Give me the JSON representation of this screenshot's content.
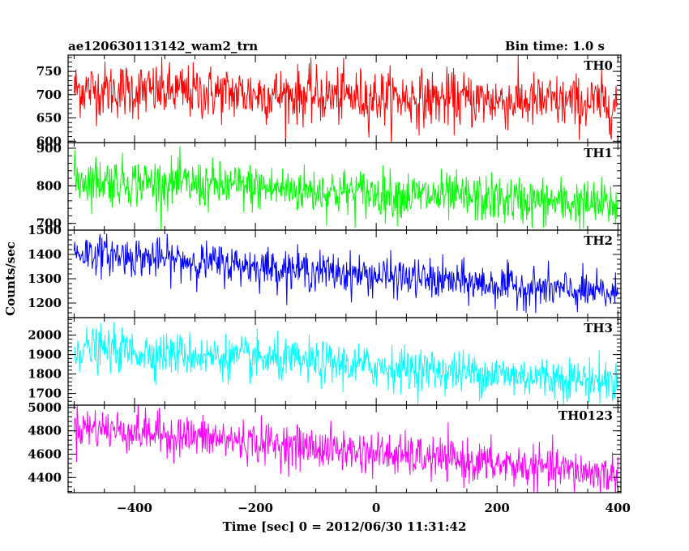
{
  "chart_data": {
    "type": "line",
    "title": "ae120630113142_wam2_trn",
    "subtitle": "Bin time: 1.0 s",
    "xlabel": "Time [sec] 0 = 2012/06/30 11:31:42",
    "ylabel": "Counts/sec",
    "xlim": [
      -510,
      405
    ],
    "x_ticks": [
      -400,
      -200,
      0,
      200,
      400
    ],
    "x_start": -500,
    "x_end": 400,
    "x_step": 1,
    "grid": false,
    "panels": [
      {
        "name": "TH0",
        "color": "#ff0000",
        "ylim": [
          597,
          785
        ],
        "yticks": [
          600,
          650,
          700,
          750
        ],
        "trend": {
          "start": 712,
          "end": 680
        },
        "noise_sd": 30
      },
      {
        "name": "TH1",
        "color": "#00ff00",
        "ylim": [
          682,
          915
        ],
        "yticks": [
          700,
          800,
          900
        ],
        "trend": {
          "start": 818,
          "end": 748
        },
        "noise_sd": 32
      },
      {
        "name": "TH2",
        "color": "#0000ff",
        "ylim": [
          1140,
          1500
        ],
        "yticks": [
          1200,
          1300,
          1400,
          1500
        ],
        "trend": {
          "start": 1410,
          "end": 1235
        },
        "noise_sd": 40
      },
      {
        "name": "TH3",
        "color": "#00ffff",
        "ylim": [
          1640,
          2090
        ],
        "yticks": [
          1700,
          1800,
          1900,
          2000
        ],
        "trend": {
          "start": 1935,
          "end": 1760
        },
        "noise_sd": 55
      },
      {
        "name": "TH0123",
        "color": "#ff00ff",
        "ylim": [
          4270,
          5020
        ],
        "yticks": [
          4400,
          4600,
          4800,
          5000
        ],
        "trend": {
          "start": 4840,
          "end": 4420
        },
        "noise_sd": 90
      }
    ]
  }
}
